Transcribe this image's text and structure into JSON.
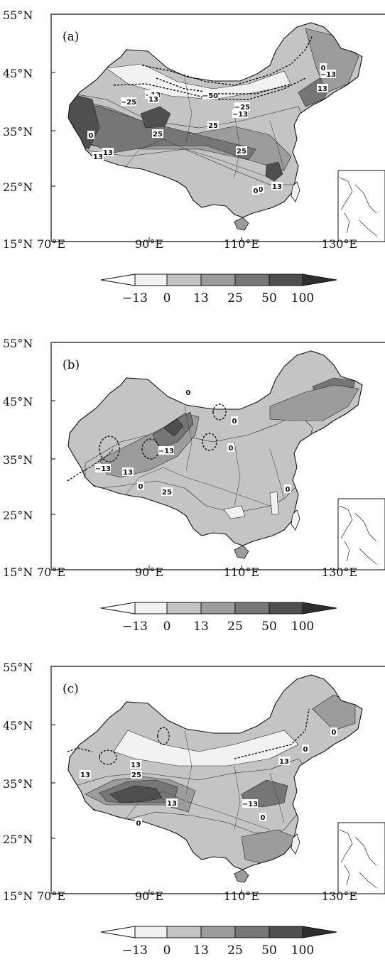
{
  "palette": [
    "#f2f2f2",
    "#c4c4c4",
    "#9c9c9c",
    "#767676",
    "#4f4f4f",
    "#2f2f2f"
  ],
  "axes": {
    "lat_labels": [
      "55°N",
      "45°N",
      "35°N",
      "25°N",
      "15°N"
    ],
    "lon_labels": [
      "70°E",
      "90°E",
      "110°E",
      "130°E"
    ]
  },
  "colorbar": {
    "labels": [
      "−13",
      "0",
      "13",
      "25",
      "50",
      "100"
    ]
  },
  "panels": [
    {
      "label": "(a)",
      "contour_labels": [
        "−50",
        "−25",
        "−25",
        "−13",
        "−13",
        "−13",
        "13",
        "13",
        "13",
        "25",
        "25",
        "25",
        "0",
        "0",
        "0",
        "13",
        "0",
        "13"
      ]
    },
    {
      "label": "(b)",
      "contour_labels": [
        "−13",
        "−13",
        "13",
        "25",
        "0",
        "0",
        "0",
        "0",
        "0"
      ]
    },
    {
      "label": "(c)",
      "contour_labels": [
        "13",
        "13",
        "25",
        "13",
        "0",
        "0",
        "−13",
        "0",
        "13",
        "0"
      ]
    }
  ]
}
